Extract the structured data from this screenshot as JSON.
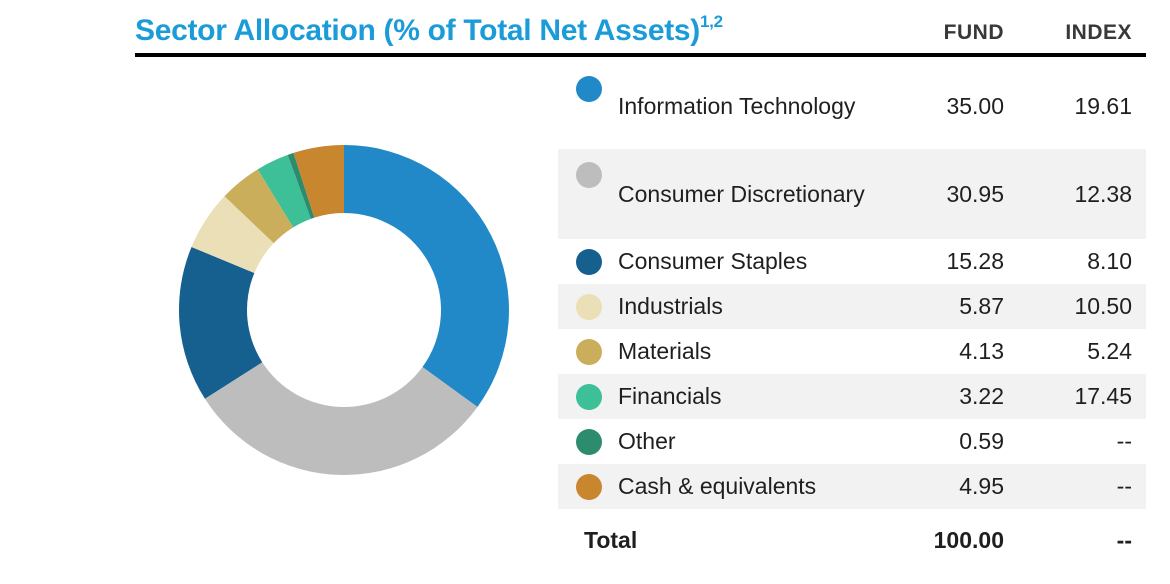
{
  "title": {
    "text": "Sector Allocation (% of Total Net Assets)",
    "superscript": "1,2"
  },
  "columns": {
    "fund": "FUND",
    "index": "INDEX"
  },
  "table": {
    "rows": [
      {
        "label": "Information Technology",
        "fund": "35.00",
        "index": "19.61",
        "color": "#2289c9"
      },
      {
        "label": "Consumer Discretionary",
        "fund": "30.95",
        "index": "12.38",
        "color": "#bdbdbd"
      },
      {
        "label": "Consumer Staples",
        "fund": "15.28",
        "index": "8.10",
        "color": "#15608f"
      },
      {
        "label": "Industrials",
        "fund": "5.87",
        "index": "10.50",
        "color": "#eadfb6"
      },
      {
        "label": "Materials",
        "fund": "4.13",
        "index": "5.24",
        "color": "#cbae5c"
      },
      {
        "label": "Financials",
        "fund": "3.22",
        "index": "17.45",
        "color": "#3dbf97"
      },
      {
        "label": "Other",
        "fund": "0.59",
        "index": "--",
        "color": "#2e8c6e"
      },
      {
        "label": "Cash & equivalents",
        "fund": "4.95",
        "index": "--",
        "color": "#c8862f"
      }
    ],
    "total": {
      "label": "Total",
      "fund": "100.00",
      "index": "--"
    }
  },
  "chart_data": {
    "type": "pie",
    "subtype": "donut",
    "title": "Sector Allocation (% of Total Net Assets)",
    "categories": [
      "Information Technology",
      "Consumer Discretionary",
      "Consumer Staples",
      "Industrials",
      "Materials",
      "Financials",
      "Other",
      "Cash & equivalents"
    ],
    "series": [
      {
        "name": "FUND",
        "values": [
          35.0,
          30.95,
          15.28,
          5.87,
          4.13,
          3.22,
          0.59,
          4.95
        ]
      },
      {
        "name": "INDEX",
        "values": [
          19.61,
          12.38,
          8.1,
          10.5,
          5.24,
          17.45,
          null,
          null
        ]
      }
    ],
    "donut_series": "FUND",
    "totals": {
      "FUND": "100.00",
      "INDEX": "--"
    },
    "colors": [
      "#2289c9",
      "#bdbdbd",
      "#15608f",
      "#eadfb6",
      "#cbae5c",
      "#3dbf97",
      "#2e8c6e",
      "#c8862f"
    ],
    "start_angle_deg": 0,
    "direction": "clockwise",
    "inner_radius_ratio": 0.59,
    "legend_position": "right",
    "accent_color": "#1b9cd8",
    "row_alt_background": "#f2f2f2"
  }
}
